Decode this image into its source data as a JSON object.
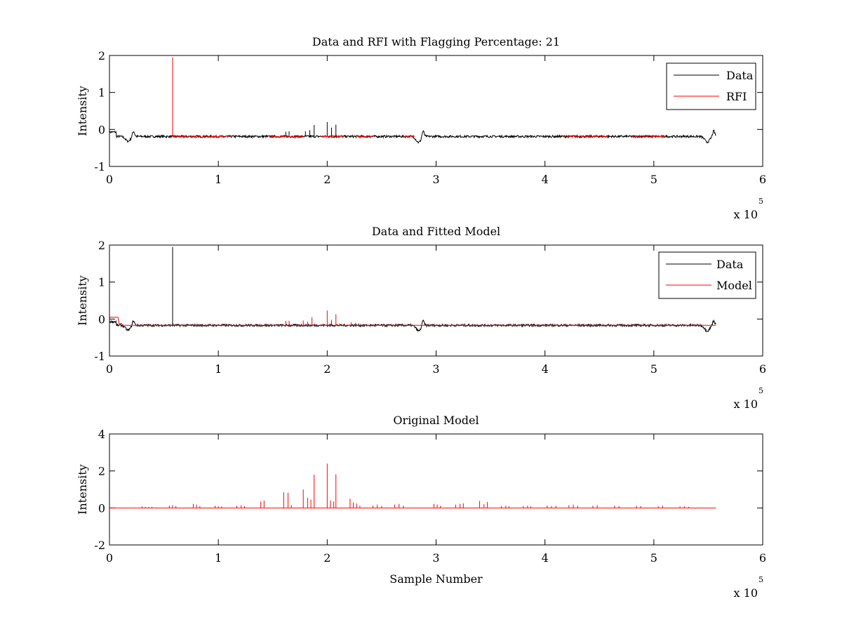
{
  "chart_data": [
    {
      "type": "line",
      "title": "Data and RFI with Flagging Percentage: 21",
      "xlabel": "",
      "ylabel": "Intensity",
      "xlim": [
        0,
        6
      ],
      "ylim": [
        -1,
        2
      ],
      "xticks": [
        "0",
        "1",
        "2",
        "3",
        "4",
        "5",
        "6"
      ],
      "yticks": [
        "-1",
        "0",
        "1",
        "2"
      ],
      "x_multiplier_base": "x 10",
      "x_multiplier_exp": "5",
      "legend_position": "top-right",
      "series": [
        {
          "name": "Data",
          "color": "#000000",
          "baseline": -0.19,
          "spikes": [
            [
              1.8,
              -0.05
            ],
            [
              1.84,
              -0.02
            ],
            [
              1.88,
              0.12
            ],
            [
              2.0,
              0.2
            ],
            [
              2.04,
              0.05
            ],
            [
              2.08,
              0.13
            ],
            [
              1.62,
              -0.06
            ],
            [
              1.65,
              -0.05
            ]
          ],
          "dips": [
            [
              0.17,
              -0.32
            ],
            [
              2.84,
              -0.35
            ],
            [
              5.49,
              -0.34
            ]
          ],
          "bumps": [
            [
              0.22,
              -0.04
            ],
            [
              2.88,
              -0.02
            ],
            [
              5.55,
              -0.04
            ]
          ]
        },
        {
          "name": "RFI",
          "color": "#ff0000",
          "baseline": -0.19,
          "spikes": [
            [
              0.58,
              1.95
            ]
          ],
          "segments": [
            [
              0.58,
              1.1
            ],
            [
              1.45,
              1.78
            ],
            [
              1.95,
              2.15
            ],
            [
              2.28,
              2.42
            ],
            [
              2.7,
              2.8
            ],
            [
              4.18,
              4.58
            ],
            [
              4.8,
              5.1
            ]
          ]
        }
      ]
    },
    {
      "type": "line",
      "title": "Data and Fitted Model",
      "xlabel": "",
      "ylabel": "Intensity",
      "xlim": [
        0,
        6
      ],
      "ylim": [
        -1,
        2
      ],
      "xticks": [
        "0",
        "1",
        "2",
        "3",
        "4",
        "5",
        "6"
      ],
      "yticks": [
        "-1",
        "0",
        "1",
        "2"
      ],
      "x_multiplier_base": "x 10",
      "x_multiplier_exp": "5",
      "legend_position": "top-right",
      "series": [
        {
          "name": "Data",
          "color": "#000000",
          "baseline": -0.17,
          "spikes": [
            [
              0.58,
              1.95
            ]
          ],
          "dips": [
            [
              0.17,
              -0.3
            ],
            [
              2.84,
              -0.32
            ],
            [
              5.49,
              -0.32
            ]
          ],
          "bumps": [
            [
              0.22,
              -0.04
            ],
            [
              2.88,
              -0.02
            ],
            [
              5.55,
              -0.04
            ]
          ]
        },
        {
          "name": "Model",
          "color": "#ff0000",
          "baseline": -0.17,
          "spikes": [
            [
              1.62,
              -0.05
            ],
            [
              1.65,
              -0.05
            ],
            [
              1.78,
              -0.04
            ],
            [
              1.82,
              -0.07
            ],
            [
              1.86,
              0.05
            ],
            [
              2.0,
              0.23
            ],
            [
              2.04,
              -0.02
            ],
            [
              2.08,
              0.13
            ],
            [
              2.22,
              -0.09
            ],
            [
              2.26,
              -0.1
            ]
          ],
          "steps": [
            [
              0.0,
              0.05
            ],
            [
              0.08,
              -0.12
            ]
          ]
        }
      ]
    },
    {
      "type": "line",
      "title": "Original Model",
      "xlabel": "Sample Number",
      "ylabel": "Intensity",
      "xlim": [
        0,
        6
      ],
      "ylim": [
        -2,
        4
      ],
      "xticks": [
        "0",
        "1",
        "2",
        "3",
        "4",
        "5",
        "6"
      ],
      "yticks": [
        "-2",
        "0",
        "2",
        "4"
      ],
      "x_multiplier_base": "x 10",
      "x_multiplier_exp": "5",
      "series": [
        {
          "color": "#ff0000",
          "baseline": 0,
          "spikes": [
            [
              0.3,
              0.08
            ],
            [
              0.33,
              0.06
            ],
            [
              0.36,
              0.05
            ],
            [
              0.39,
              0.06
            ],
            [
              0.55,
              0.12
            ],
            [
              0.58,
              0.15
            ],
            [
              0.61,
              0.1
            ],
            [
              0.77,
              0.22
            ],
            [
              0.8,
              0.18
            ],
            [
              0.83,
              0.1
            ],
            [
              0.97,
              0.12
            ],
            [
              1.0,
              0.1
            ],
            [
              1.03,
              0.08
            ],
            [
              1.17,
              0.12
            ],
            [
              1.21,
              0.15
            ],
            [
              1.24,
              0.1
            ],
            [
              1.39,
              0.35
            ],
            [
              1.42,
              0.4
            ],
            [
              1.6,
              0.85
            ],
            [
              1.64,
              0.82
            ],
            [
              1.67,
              0.15
            ],
            [
              1.78,
              1.0
            ],
            [
              1.82,
              0.55
            ],
            [
              1.85,
              0.45
            ],
            [
              1.88,
              1.8
            ],
            [
              2.0,
              2.4
            ],
            [
              2.03,
              0.4
            ],
            [
              2.06,
              0.35
            ],
            [
              2.08,
              1.82
            ],
            [
              2.21,
              0.5
            ],
            [
              2.24,
              0.3
            ],
            [
              2.27,
              0.25
            ],
            [
              2.3,
              0.12
            ],
            [
              2.42,
              0.12
            ],
            [
              2.46,
              0.18
            ],
            [
              2.5,
              0.1
            ],
            [
              2.62,
              0.18
            ],
            [
              2.66,
              0.22
            ],
            [
              2.7,
              0.12
            ],
            [
              2.98,
              0.22
            ],
            [
              3.01,
              0.18
            ],
            [
              3.04,
              0.12
            ],
            [
              3.18,
              0.18
            ],
            [
              3.22,
              0.22
            ],
            [
              3.25,
              0.25
            ],
            [
              3.4,
              0.38
            ],
            [
              3.44,
              0.2
            ],
            [
              3.47,
              0.32
            ],
            [
              3.6,
              0.1
            ],
            [
              3.64,
              0.12
            ],
            [
              3.67,
              0.08
            ],
            [
              3.8,
              0.1
            ],
            [
              3.84,
              0.12
            ],
            [
              3.87,
              0.08
            ],
            [
              4.02,
              0.12
            ],
            [
              4.06,
              0.1
            ],
            [
              4.1,
              0.12
            ],
            [
              4.22,
              0.15
            ],
            [
              4.26,
              0.18
            ],
            [
              4.3,
              0.12
            ],
            [
              4.44,
              0.12
            ],
            [
              4.48,
              0.15
            ],
            [
              4.64,
              0.12
            ],
            [
              4.68,
              0.1
            ],
            [
              4.84,
              0.12
            ],
            [
              4.88,
              0.1
            ],
            [
              5.04,
              0.1
            ],
            [
              5.08,
              0.12
            ],
            [
              5.24,
              0.08
            ],
            [
              5.28,
              0.1
            ],
            [
              5.32,
              0.06
            ]
          ]
        }
      ]
    }
  ]
}
